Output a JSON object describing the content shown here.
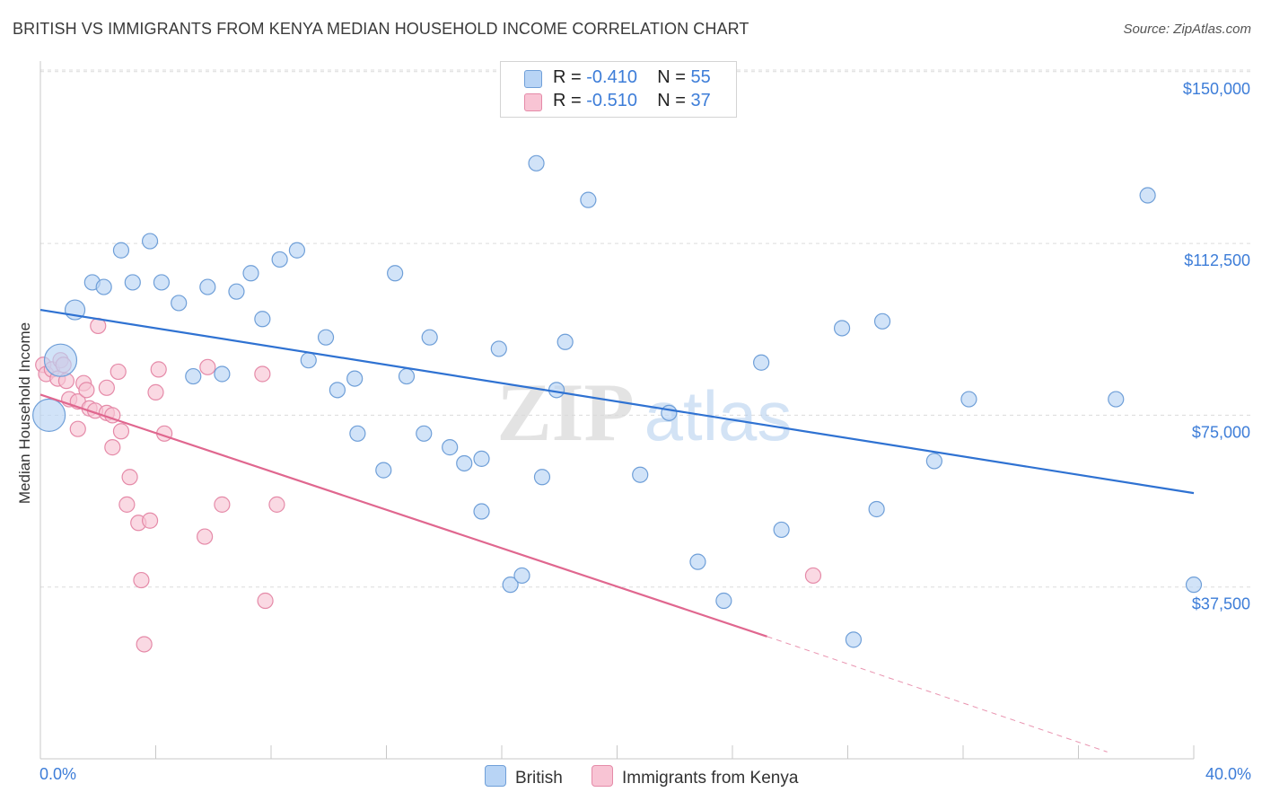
{
  "title": "BRITISH VS IMMIGRANTS FROM KENYA MEDIAN HOUSEHOLD INCOME CORRELATION CHART",
  "source": "Source: ZipAtlas.com",
  "watermark": {
    "zip": "ZIP",
    "atlas": "atlas"
  },
  "legend_top": [
    {
      "r_label": "R = ",
      "r_value": "-0.410",
      "n_label": "N = ",
      "n_value": "55"
    },
    {
      "r_label": "R = ",
      "r_value": "-0.510",
      "n_label": "N = ",
      "n_value": "37"
    }
  ],
  "legend_bottom": {
    "british": "British",
    "kenya": "Immigrants from Kenya"
  },
  "colors": {
    "british_fill": "#b8d4f5",
    "british_stroke": "#6f9fd8",
    "british_line": "#2f72d2",
    "kenya_fill": "#f8c4d4",
    "kenya_stroke": "#e58aa8",
    "kenya_line": "#e0678f",
    "tick_label": "#3d7dd8",
    "grid": "#dcdcdc"
  },
  "chart_data": {
    "type": "scatter",
    "xlabel": "",
    "ylabel": "Median Household Income",
    "xlim": [
      0,
      40
    ],
    "ylim": [
      0,
      153000
    ],
    "x_tick_labels": {
      "min": "0.0%",
      "max": "40.0%"
    },
    "y_ticks": [
      {
        "value": 37500,
        "label": "$37,500"
      },
      {
        "value": 75000,
        "label": "$75,000"
      },
      {
        "value": 112500,
        "label": "$112,500"
      },
      {
        "value": 150000,
        "label": "$150,000"
      }
    ],
    "grid": true,
    "legend_position": "top-center",
    "series": [
      {
        "name": "British",
        "r": -0.41,
        "n": 55,
        "points": [
          [
            0.7,
            87000,
            "large"
          ],
          [
            0.3,
            75000,
            "large"
          ],
          [
            1.2,
            98000,
            "medium"
          ],
          [
            1.8,
            104000
          ],
          [
            2.2,
            103000
          ],
          [
            2.8,
            111000
          ],
          [
            3.2,
            104000
          ],
          [
            3.8,
            113000
          ],
          [
            4.2,
            104000
          ],
          [
            4.8,
            99500
          ],
          [
            5.3,
            83500
          ],
          [
            5.8,
            103000
          ],
          [
            6.3,
            84000
          ],
          [
            6.8,
            102000
          ],
          [
            7.3,
            106000
          ],
          [
            7.7,
            96000
          ],
          [
            8.3,
            109000
          ],
          [
            8.9,
            111000
          ],
          [
            9.3,
            87000
          ],
          [
            9.9,
            92000
          ],
          [
            10.3,
            80500
          ],
          [
            10.9,
            83000
          ],
          [
            11.0,
            71000
          ],
          [
            11.9,
            63000
          ],
          [
            12.3,
            106000
          ],
          [
            12.7,
            83500
          ],
          [
            13.3,
            71000
          ],
          [
            13.5,
            92000
          ],
          [
            14.2,
            68000
          ],
          [
            14.7,
            64500
          ],
          [
            15.3,
            65500
          ],
          [
            15.3,
            54000
          ],
          [
            15.9,
            89500
          ],
          [
            16.3,
            38000
          ],
          [
            16.7,
            40000
          ],
          [
            17.2,
            130000
          ],
          [
            17.4,
            61500
          ],
          [
            17.9,
            80500
          ],
          [
            18.2,
            91000
          ],
          [
            19.0,
            122000
          ],
          [
            20.8,
            62000
          ],
          [
            21.8,
            75500
          ],
          [
            22.8,
            43000
          ],
          [
            23.7,
            34500
          ],
          [
            25.0,
            86500
          ],
          [
            25.7,
            50000
          ],
          [
            27.8,
            94000
          ],
          [
            28.2,
            26000
          ],
          [
            29.0,
            54500
          ],
          [
            29.2,
            95500
          ],
          [
            31.0,
            65000
          ],
          [
            32.2,
            78500
          ],
          [
            37.3,
            78500
          ],
          [
            38.4,
            123000
          ],
          [
            40.0,
            38000
          ]
        ]
      },
      {
        "name": "Immigrants from Kenya",
        "r": -0.51,
        "n": 37,
        "points": [
          [
            0.1,
            86000
          ],
          [
            0.2,
            84000
          ],
          [
            0.4,
            85000
          ],
          [
            0.6,
            83000
          ],
          [
            0.7,
            87000
          ],
          [
            0.8,
            86000
          ],
          [
            0.9,
            82500
          ],
          [
            1.0,
            78500
          ],
          [
            1.3,
            78000
          ],
          [
            1.3,
            72000
          ],
          [
            1.5,
            82000
          ],
          [
            1.6,
            80500
          ],
          [
            1.7,
            76500
          ],
          [
            1.9,
            76000
          ],
          [
            2.0,
            94500
          ],
          [
            2.3,
            75500
          ],
          [
            2.3,
            81000
          ],
          [
            2.5,
            68000
          ],
          [
            2.5,
            75000
          ],
          [
            2.7,
            84500
          ],
          [
            2.8,
            71500
          ],
          [
            3.0,
            55500
          ],
          [
            3.1,
            61500
          ],
          [
            3.4,
            51500
          ],
          [
            3.5,
            39000
          ],
          [
            3.6,
            25000
          ],
          [
            3.8,
            52000
          ],
          [
            4.0,
            80000
          ],
          [
            4.1,
            85000
          ],
          [
            4.3,
            71000
          ],
          [
            5.7,
            48500
          ],
          [
            5.8,
            85500
          ],
          [
            6.3,
            55500
          ],
          [
            7.8,
            34500
          ],
          [
            7.7,
            84000
          ],
          [
            8.2,
            55500
          ],
          [
            26.8,
            40000
          ]
        ]
      }
    ],
    "trend_lines": [
      {
        "series": "British",
        "x": [
          0,
          40
        ],
        "y": [
          98000,
          58000
        ]
      },
      {
        "series": "Immigrants from Kenya",
        "x": [
          0,
          25.2
        ],
        "y": [
          79500,
          26700
        ],
        "dashed_to": [
          37,
          1500
        ]
      }
    ]
  }
}
